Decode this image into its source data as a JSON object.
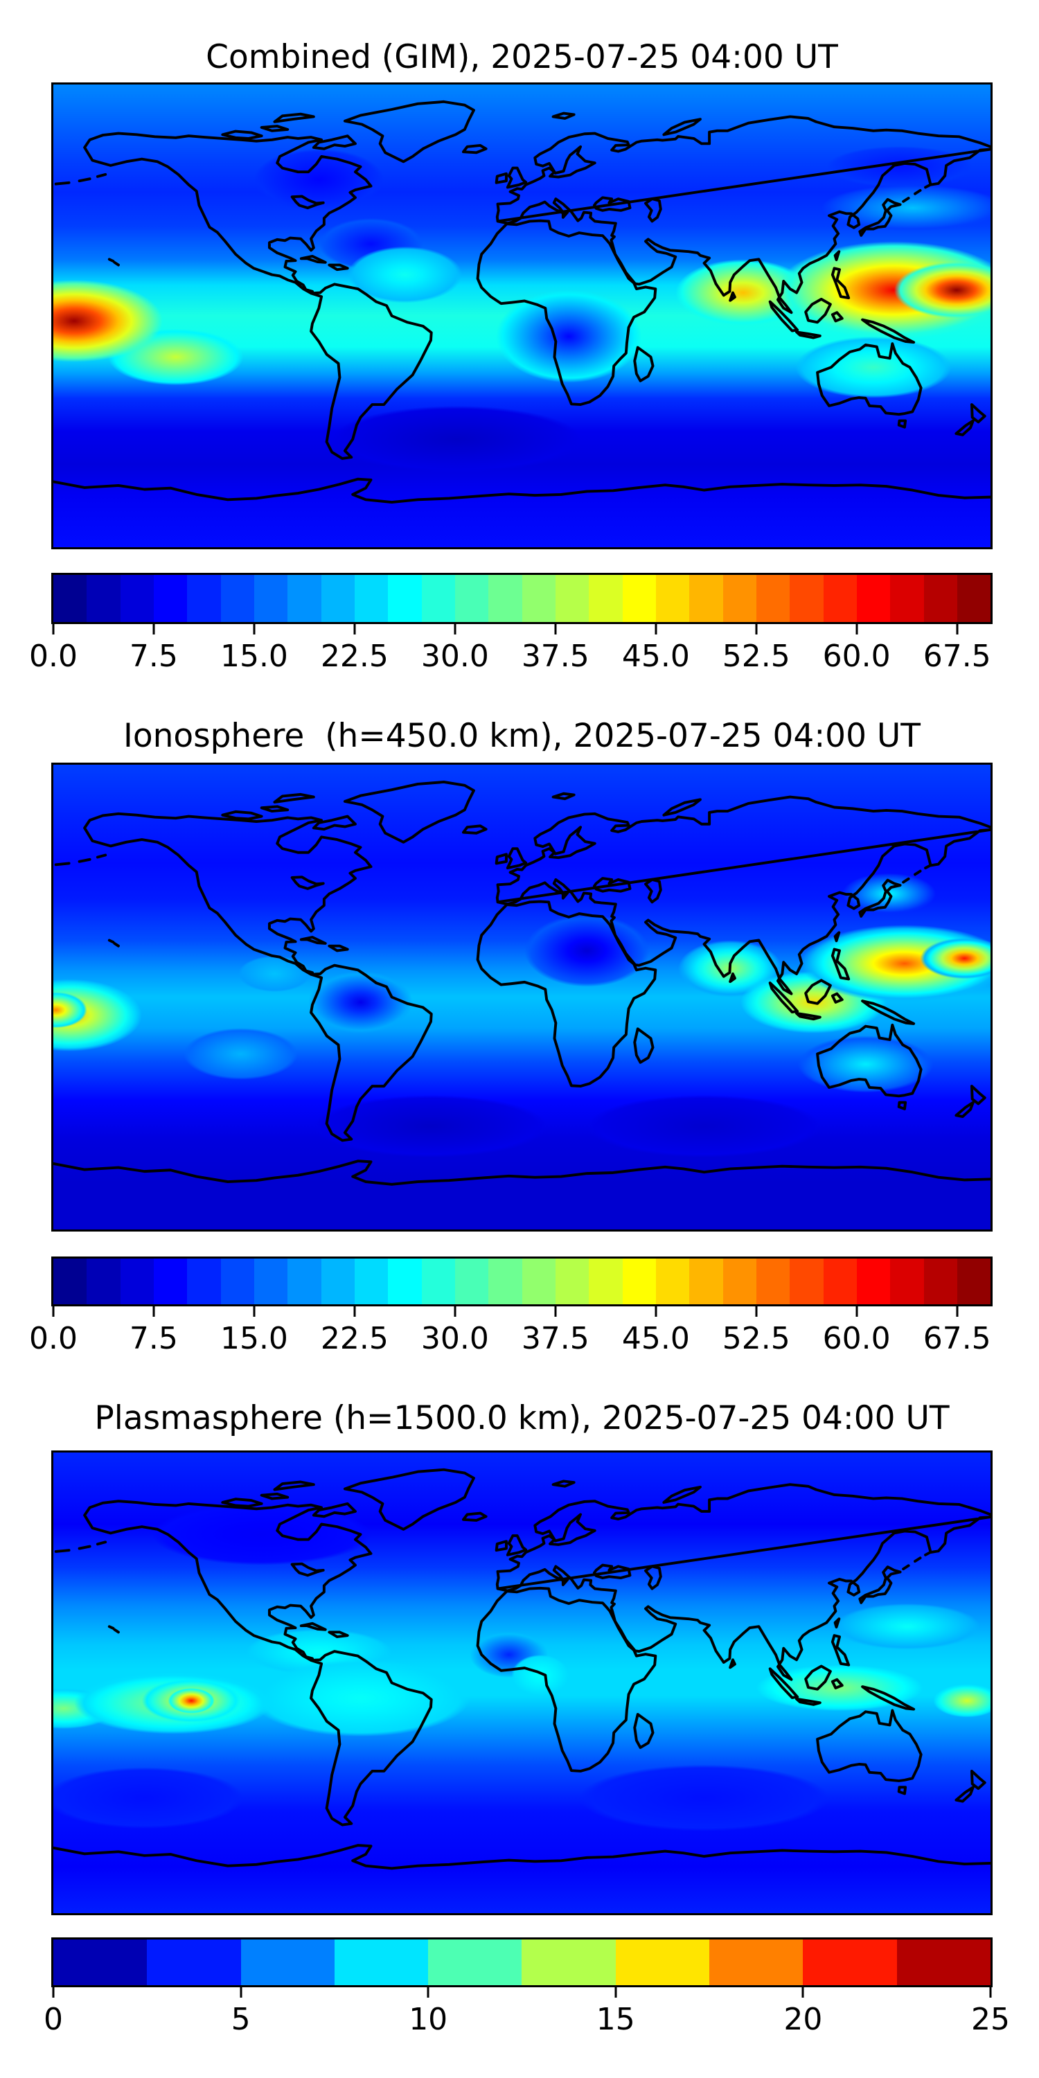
{
  "chart_data": [
    {
      "type": "heatmap",
      "title": "Combined (GIM), 2025-07-25 04:00 UT",
      "colormap": "jet",
      "projection": "equirectangular",
      "extent": {
        "lon": [
          -180,
          180
        ],
        "lat": [
          -90,
          90
        ]
      },
      "value_range": [
        0,
        70
      ],
      "level_step": 2.5,
      "legend_position": "bottom",
      "grid": false,
      "colorbar_ticks": {
        "labels": [
          "0.0",
          "7.5",
          "15.0",
          "22.5",
          "30.0",
          "37.5",
          "45.0",
          "52.5",
          "60.0",
          "67.5"
        ],
        "values": [
          0,
          7.5,
          15,
          22.5,
          30,
          37.5,
          45,
          52.5,
          60,
          67.5
        ]
      },
      "lat_profile": [
        {
          "lat": 90,
          "v": 18
        },
        {
          "lat": 72,
          "v": 15
        },
        {
          "lat": 60,
          "v": 13
        },
        {
          "lat": 48,
          "v": 11.5
        },
        {
          "lat": 35,
          "v": 13
        },
        {
          "lat": 22,
          "v": 17
        },
        {
          "lat": 12,
          "v": 24
        },
        {
          "lat": 0,
          "v": 28
        },
        {
          "lat": -12,
          "v": 27
        },
        {
          "lat": -22,
          "v": 20
        },
        {
          "lat": -32,
          "v": 12
        },
        {
          "lat": -45,
          "v": 7.5
        },
        {
          "lat": -58,
          "v": 6.5
        },
        {
          "lat": -70,
          "v": 8
        },
        {
          "lat": -90,
          "v": 9.5
        }
      ],
      "features": [
        {
          "name": "pacific-west-peak",
          "lon": -172,
          "lat": -2,
          "v": 68,
          "rx": 34,
          "ry": 16
        },
        {
          "name": "pacific-southeast-tongue",
          "lon": -133,
          "lat": -16,
          "v": 40,
          "rx": 26,
          "ry": 11
        },
        {
          "name": "east-asia-core",
          "lon": 167,
          "lat": 10,
          "v": 69,
          "rx": 24,
          "ry": 11
        },
        {
          "name": "east-asia-peak",
          "lon": 143,
          "lat": 10,
          "v": 62,
          "rx": 45,
          "ry": 19
        },
        {
          "name": "india-anomaly",
          "lon": 85,
          "lat": 9,
          "v": 48,
          "rx": 26,
          "ry": 13
        },
        {
          "name": "nw-pacific-cyan",
          "lon": 150,
          "lat": 42,
          "v": 22,
          "rx": 35,
          "ry": 9
        },
        {
          "name": "australia-band",
          "lon": 135,
          "lat": -20,
          "v": 30,
          "rx": 30,
          "ry": 12
        },
        {
          "name": "atlantic-cyan-patch",
          "lon": -45,
          "lat": 16,
          "v": 27,
          "rx": 22,
          "ry": 11
        },
        {
          "name": "okhotsk-low",
          "lon": 145,
          "lat": 58,
          "v": 10,
          "rx": 28,
          "ry": 8
        },
        {
          "name": "canada-low",
          "lon": -78,
          "lat": 53,
          "v": 9,
          "rx": 25,
          "ry": 12
        },
        {
          "name": "west-atlantic-low",
          "lon": -58,
          "lat": 28,
          "v": 9.5,
          "rx": 20,
          "ry": 10
        },
        {
          "name": "africa-low",
          "lon": 18,
          "lat": -8,
          "v": 9,
          "rx": 28,
          "ry": 18
        },
        {
          "name": "south-atlantic-low",
          "lon": -25,
          "lat": -48,
          "v": 5,
          "rx": 48,
          "ry": 13
        }
      ]
    },
    {
      "type": "heatmap",
      "title": "Ionosphere  (h=450.0 km), 2025-07-25 04:00 UT",
      "colormap": "jet",
      "projection": "equirectangular",
      "extent": {
        "lon": [
          -180,
          180
        ],
        "lat": [
          -90,
          90
        ]
      },
      "value_range": [
        0,
        70
      ],
      "level_step": 2.5,
      "legend_position": "bottom",
      "grid": false,
      "colorbar_ticks": {
        "labels": [
          "0.0",
          "7.5",
          "15.0",
          "22.5",
          "30.0",
          "37.5",
          "45.0",
          "52.5",
          "60.0",
          "67.5"
        ],
        "values": [
          0,
          7.5,
          15,
          22.5,
          30,
          37.5,
          45,
          52.5,
          60,
          67.5
        ]
      },
      "lat_profile": [
        {
          "lat": 90,
          "v": 13
        },
        {
          "lat": 70,
          "v": 11
        },
        {
          "lat": 52,
          "v": 9.5
        },
        {
          "lat": 38,
          "v": 10.5
        },
        {
          "lat": 22,
          "v": 14
        },
        {
          "lat": 10,
          "v": 19
        },
        {
          "lat": 0,
          "v": 22
        },
        {
          "lat": -12,
          "v": 20
        },
        {
          "lat": -25,
          "v": 14
        },
        {
          "lat": -40,
          "v": 9
        },
        {
          "lat": -55,
          "v": 6.5
        },
        {
          "lat": -72,
          "v": 5.5
        },
        {
          "lat": -90,
          "v": 5.5
        }
      ],
      "features": [
        {
          "name": "pacific-west-core",
          "lon": -179,
          "lat": -5,
          "v": 52,
          "rx": 12,
          "ry": 7
        },
        {
          "name": "pacific-west-peak",
          "lon": -174,
          "lat": -7,
          "v": 49,
          "rx": 28,
          "ry": 14
        },
        {
          "name": "east-asia-core",
          "lon": 170,
          "lat": 15,
          "v": 60,
          "rx": 17,
          "ry": 8
        },
        {
          "name": "east-asia-peak",
          "lon": 147,
          "lat": 13,
          "v": 55,
          "rx": 40,
          "ry": 15
        },
        {
          "name": "indonesia-yellow",
          "lon": 112,
          "lat": -2,
          "v": 46,
          "rx": 28,
          "ry": 12
        },
        {
          "name": "india-green",
          "lon": 80,
          "lat": 11,
          "v": 37,
          "rx": 20,
          "ry": 11
        },
        {
          "name": "japan-cyan",
          "lon": 141,
          "lat": 40,
          "v": 26,
          "rx": 18,
          "ry": 8
        },
        {
          "name": "australia-cyan",
          "lon": 132,
          "lat": -26,
          "v": 25,
          "rx": 26,
          "ry": 11
        },
        {
          "name": "central-america-cyan",
          "lon": -95,
          "lat": 9,
          "v": 22,
          "rx": 14,
          "ry": 7
        },
        {
          "name": "southeast-pacific-cyan",
          "lon": -108,
          "lat": -22,
          "v": 21,
          "rx": 22,
          "ry": 10
        },
        {
          "name": "ne-africa-low",
          "lon": 25,
          "lat": 18,
          "v": 6,
          "rx": 24,
          "ry": 14
        },
        {
          "name": "south-america-low",
          "lon": -62,
          "lat": -2,
          "v": 7.5,
          "rx": 20,
          "ry": 12
        },
        {
          "name": "south-atlantic-low",
          "lon": -35,
          "lat": -50,
          "v": 5,
          "rx": 45,
          "ry": 12
        },
        {
          "name": "south-indian-low",
          "lon": 70,
          "lat": -50,
          "v": 5.5,
          "rx": 45,
          "ry": 12
        }
      ]
    },
    {
      "type": "heatmap",
      "title": "Plasmasphere (h=1500.0 km), 2025-07-25 04:00 UT",
      "colormap": "jet",
      "projection": "equirectangular",
      "extent": {
        "lon": [
          -180,
          180
        ],
        "lat": [
          -90,
          90
        ]
      },
      "value_range": [
        0,
        25
      ],
      "level_step": 2.5,
      "legend_position": "bottom",
      "grid": false,
      "colorbar_ticks": {
        "labels": [
          "0",
          "5",
          "10",
          "15",
          "20",
          "25"
        ],
        "values": [
          0,
          5,
          10,
          15,
          20,
          25
        ]
      },
      "lat_profile": [
        {
          "lat": 90,
          "v": 4
        },
        {
          "lat": 62,
          "v": 3
        },
        {
          "lat": 45,
          "v": 4.5
        },
        {
          "lat": 30,
          "v": 6.5
        },
        {
          "lat": 15,
          "v": 8
        },
        {
          "lat": 5,
          "v": 8.5
        },
        {
          "lat": -5,
          "v": 8.5
        },
        {
          "lat": -18,
          "v": 6.8
        },
        {
          "lat": -32,
          "v": 5
        },
        {
          "lat": -50,
          "v": 3.5
        },
        {
          "lat": -72,
          "v": 3
        },
        {
          "lat": -90,
          "v": 3.8
        }
      ],
      "features": [
        {
          "name": "south-pacific-core",
          "lon": -127,
          "lat": -7,
          "v": 21.5,
          "rx": 9,
          "ry": 5
        },
        {
          "name": "south-pacific-ring",
          "lon": -127,
          "lat": -7,
          "v": 16.5,
          "rx": 19,
          "ry": 8.5
        },
        {
          "name": "south-pacific-band",
          "lon": -134,
          "lat": -8,
          "v": 13,
          "rx": 38,
          "ry": 12
        },
        {
          "name": "west-edge-band",
          "lon": -176,
          "lat": -10,
          "v": 12.5,
          "rx": 20,
          "ry": 8
        },
        {
          "name": "americas-equator-cyan",
          "lon": -62,
          "lat": -6,
          "v": 9.5,
          "rx": 42,
          "ry": 15
        },
        {
          "name": "caribbean-cyan",
          "lon": -78,
          "lat": 12,
          "v": 9.5,
          "rx": 28,
          "ry": 9
        },
        {
          "name": "guinea-cyan",
          "lon": 7,
          "lat": 3,
          "v": 9.5,
          "rx": 11,
          "ry": 8
        },
        {
          "name": "maritime-green",
          "lon": 122,
          "lat": -2,
          "v": 12.5,
          "rx": 32,
          "ry": 9
        },
        {
          "name": "southwest-pacific-yellow",
          "lon": 171,
          "lat": -7,
          "v": 14.5,
          "rx": 13,
          "ry": 6.5
        },
        {
          "name": "nw-pacific-cyan",
          "lon": 148,
          "lat": 22,
          "v": 9.5,
          "rx": 28,
          "ry": 9
        },
        {
          "name": "west-africa-low",
          "lon": -5,
          "lat": 11,
          "v": 4,
          "rx": 15,
          "ry": 9
        },
        {
          "name": "south-pacific-low",
          "lon": -145,
          "lat": -45,
          "v": 3.5,
          "rx": 38,
          "ry": 12
        },
        {
          "name": "south-indian-low",
          "lon": 70,
          "lat": -45,
          "v": 3.5,
          "rx": 48,
          "ry": 13
        },
        {
          "name": "north-america-low",
          "lon": -100,
          "lat": 58,
          "v": 3,
          "rx": 42,
          "ry": 12
        }
      ]
    }
  ]
}
